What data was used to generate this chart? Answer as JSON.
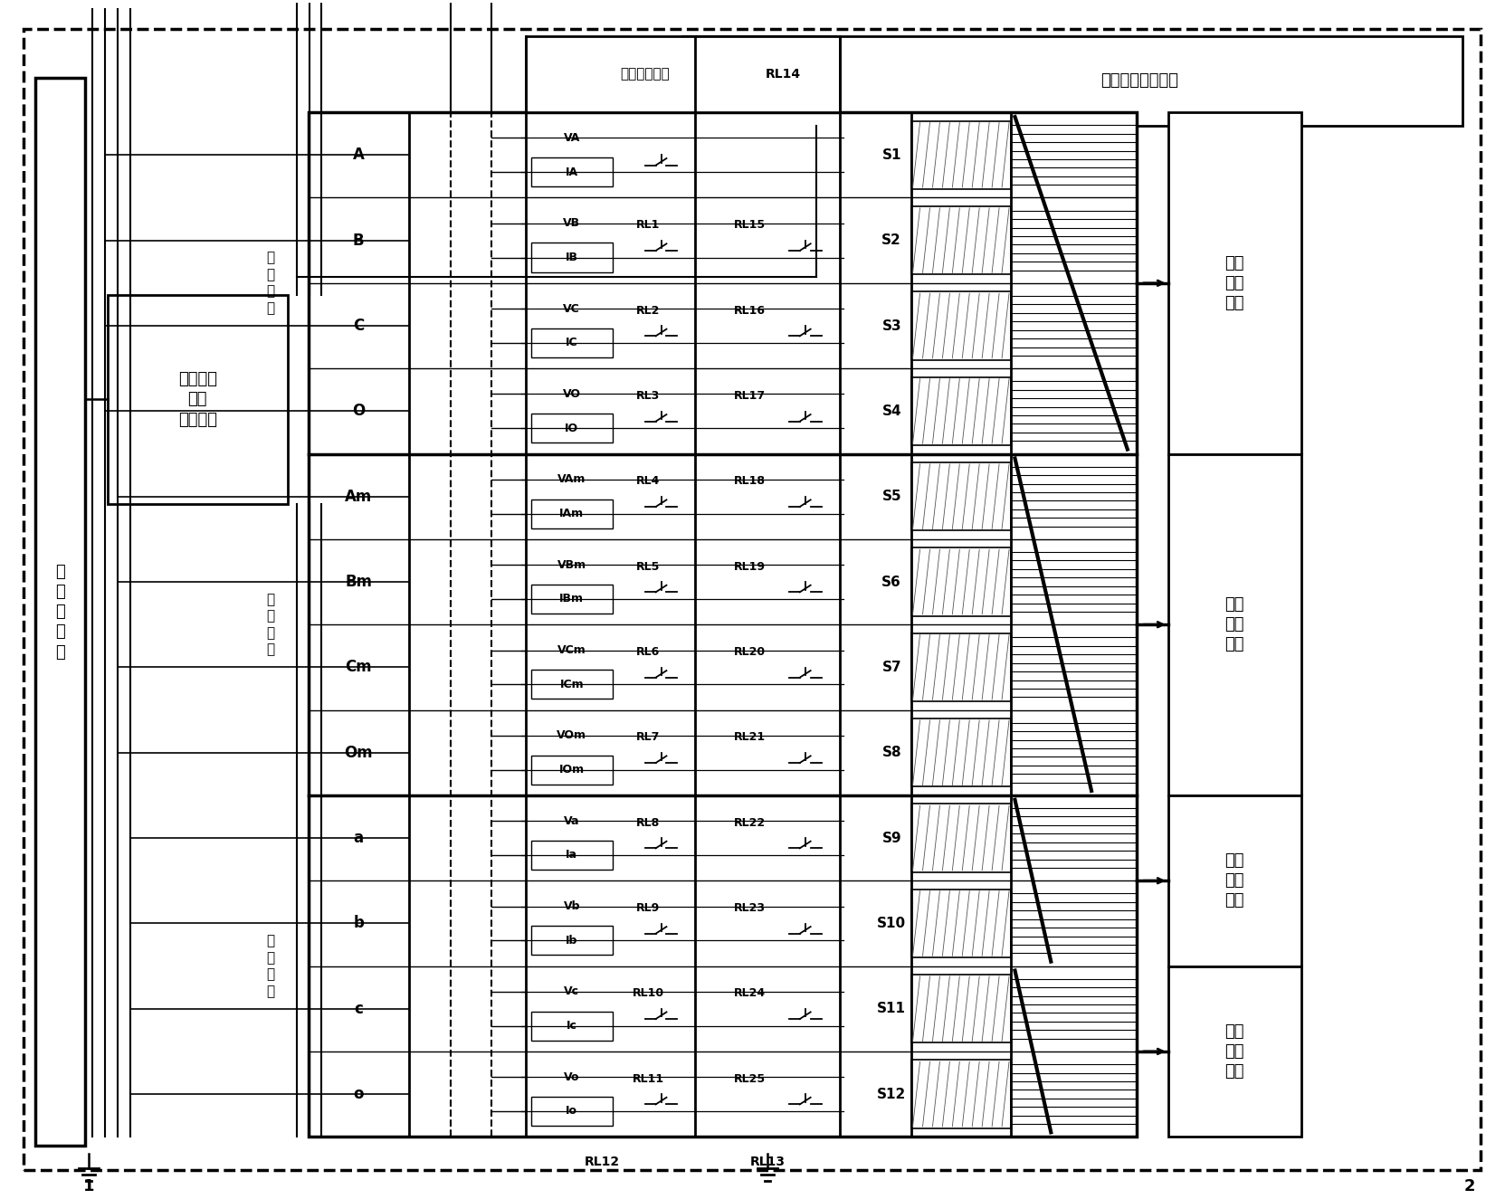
{
  "fig_w": 16.63,
  "fig_h": 13.25,
  "rows": [
    {
      "label": "A",
      "grp": "H",
      "V": "VA",
      "I": "IA",
      "rl1": "",
      "rl2": "",
      "S": "S1"
    },
    {
      "label": "B",
      "grp": "H",
      "V": "VB",
      "I": "IB",
      "rl1": "RL1",
      "rl2": "RL15",
      "S": "S2"
    },
    {
      "label": "C",
      "grp": "H",
      "V": "VC",
      "I": "IC",
      "rl1": "RL2",
      "rl2": "RL16",
      "S": "S3"
    },
    {
      "label": "O",
      "grp": "H",
      "V": "VO",
      "I": "IO",
      "rl1": "RL3",
      "rl2": "RL17",
      "S": "S4"
    },
    {
      "label": "Am",
      "grp": "M",
      "V": "VAm",
      "I": "IAm",
      "rl1": "RL4",
      "rl2": "RL18",
      "S": "S5"
    },
    {
      "label": "Bm",
      "grp": "M",
      "V": "VBm",
      "I": "IBm",
      "rl1": "RL5",
      "rl2": "RL19",
      "S": "S6"
    },
    {
      "label": "Cm",
      "grp": "M",
      "V": "VCm",
      "I": "ICm",
      "rl1": "RL6",
      "rl2": "RL20",
      "S": "S7"
    },
    {
      "label": "Om",
      "grp": "M",
      "V": "VOm",
      "I": "IOm",
      "rl1": "RL7",
      "rl2": "RL21",
      "S": "S8"
    },
    {
      "label": "a",
      "grp": "L",
      "V": "Va",
      "I": "Ia",
      "rl1": "RL8",
      "rl2": "RL22",
      "S": "S9"
    },
    {
      "label": "b",
      "grp": "L",
      "V": "Vb",
      "I": "Ib",
      "rl1": "RL9",
      "rl2": "RL23",
      "S": "S10"
    },
    {
      "label": "c",
      "grp": "L",
      "V": "Vc",
      "I": "Ic",
      "rl1": "RL10",
      "rl2": "RL24",
      "S": "S11"
    },
    {
      "label": "o",
      "grp": "L",
      "V": "Vo",
      "I": "Io",
      "rl1": "RL11",
      "rl2": "RL25",
      "S": "S12"
    }
  ],
  "rmod": [
    {
      "name": "直阻\n测量\n模块",
      "r0": 0,
      "r1": 3
    },
    {
      "name": "有载\n测量\n模块",
      "r0": 4,
      "r1": 7
    },
    {
      "name": "短阻\n测量\n模块",
      "r0": 8,
      "r1": 9
    },
    {
      "name": "变比\n测量\n模块",
      "r0": 10,
      "r1": 11
    }
  ],
  "grp_labels": [
    {
      "text": "高\n压\n绕\n组",
      "r0": 0,
      "r1": 3
    },
    {
      "text": "中\n压\n绕\n组",
      "r0": 4,
      "r1": 7
    },
    {
      "text": "低\n压\n绕\n组",
      "r0": 8,
      "r1": 11
    }
  ],
  "left_box_label": "有载分接\n开关\n电动机构",
  "elec_label": "电\n力\n变\n压\n器",
  "top_mod_label": "电动机构控制模块",
  "sw_box_label": "切换开关模块",
  "rl12": "RL12",
  "rl13": "RL13",
  "rl14": "RL14"
}
